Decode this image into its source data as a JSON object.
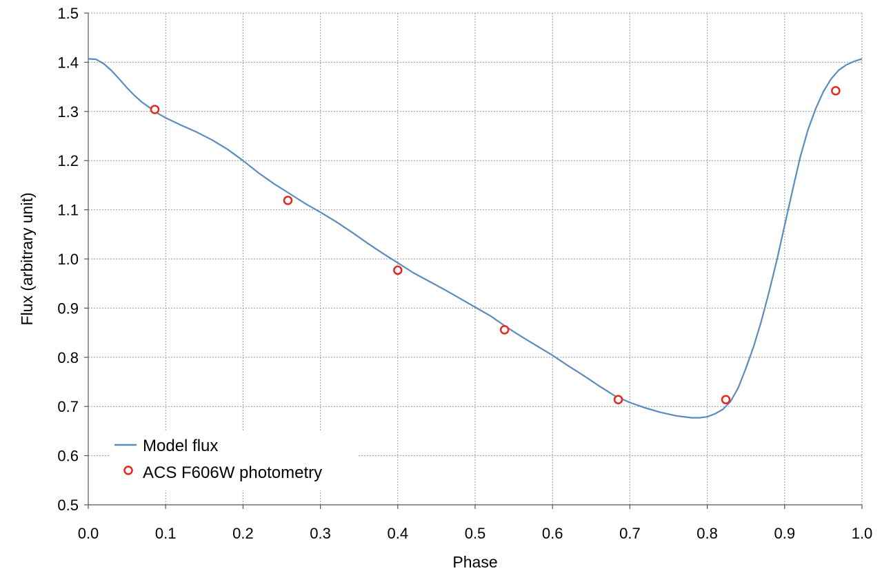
{
  "chart_data": {
    "type": "line",
    "title": "",
    "xlabel": "Phase",
    "ylabel": "Flux (arbitrary unit)",
    "xlim": [
      0.0,
      1.0
    ],
    "ylim": [
      0.5,
      1.5
    ],
    "x_ticks": [
      "0.0",
      "0.1",
      "0.2",
      "0.3",
      "0.4",
      "0.5",
      "0.6",
      "0.7",
      "0.8",
      "0.9",
      "1.0"
    ],
    "y_ticks": [
      "0.5",
      "0.6",
      "0.7",
      "0.8",
      "0.9",
      "1.0",
      "1.1",
      "1.2",
      "1.3",
      "1.4",
      "1.5"
    ],
    "grid": true,
    "legend_position": "bottom-left",
    "series": [
      {
        "name": "Model flux",
        "kind": "line",
        "color": "#5b8bbd",
        "points": [
          [
            0.0,
            1.407
          ],
          [
            0.01,
            1.406
          ],
          [
            0.02,
            1.397
          ],
          [
            0.03,
            1.383
          ],
          [
            0.04,
            1.366
          ],
          [
            0.05,
            1.348
          ],
          [
            0.06,
            1.332
          ],
          [
            0.07,
            1.318
          ],
          [
            0.08,
            1.307
          ],
          [
            0.09,
            1.296
          ],
          [
            0.1,
            1.287
          ],
          [
            0.12,
            1.272
          ],
          [
            0.14,
            1.258
          ],
          [
            0.16,
            1.242
          ],
          [
            0.18,
            1.223
          ],
          [
            0.2,
            1.2
          ],
          [
            0.22,
            1.175
          ],
          [
            0.24,
            1.153
          ],
          [
            0.26,
            1.133
          ],
          [
            0.28,
            1.113
          ],
          [
            0.3,
            1.095
          ],
          [
            0.32,
            1.076
          ],
          [
            0.34,
            1.055
          ],
          [
            0.36,
            1.033
          ],
          [
            0.38,
            1.012
          ],
          [
            0.4,
            0.992
          ],
          [
            0.42,
            0.972
          ],
          [
            0.44,
            0.955
          ],
          [
            0.46,
            0.938
          ],
          [
            0.48,
            0.92
          ],
          [
            0.5,
            0.902
          ],
          [
            0.52,
            0.884
          ],
          [
            0.54,
            0.862
          ],
          [
            0.56,
            0.842
          ],
          [
            0.58,
            0.823
          ],
          [
            0.6,
            0.804
          ],
          [
            0.62,
            0.783
          ],
          [
            0.64,
            0.763
          ],
          [
            0.66,
            0.742
          ],
          [
            0.68,
            0.722
          ],
          [
            0.7,
            0.708
          ],
          [
            0.72,
            0.697
          ],
          [
            0.74,
            0.688
          ],
          [
            0.76,
            0.681
          ],
          [
            0.78,
            0.677
          ],
          [
            0.79,
            0.677
          ],
          [
            0.8,
            0.679
          ],
          [
            0.81,
            0.685
          ],
          [
            0.82,
            0.694
          ],
          [
            0.83,
            0.71
          ],
          [
            0.84,
            0.738
          ],
          [
            0.85,
            0.778
          ],
          [
            0.86,
            0.822
          ],
          [
            0.87,
            0.874
          ],
          [
            0.88,
            0.934
          ],
          [
            0.89,
            0.998
          ],
          [
            0.9,
            1.068
          ],
          [
            0.91,
            1.138
          ],
          [
            0.92,
            1.206
          ],
          [
            0.93,
            1.262
          ],
          [
            0.94,
            1.305
          ],
          [
            0.95,
            1.34
          ],
          [
            0.96,
            1.366
          ],
          [
            0.97,
            1.384
          ],
          [
            0.98,
            1.395
          ],
          [
            0.99,
            1.402
          ],
          [
            1.0,
            1.407
          ]
        ]
      },
      {
        "name": "ACS F606W photometry",
        "kind": "scatter",
        "color": "#e8261f",
        "points": [
          [
            0.086,
            1.304
          ],
          [
            0.258,
            1.119
          ],
          [
            0.4,
            0.977
          ],
          [
            0.538,
            0.856
          ],
          [
            0.685,
            0.714
          ],
          [
            0.824,
            0.714
          ],
          [
            0.966,
            1.342
          ]
        ]
      }
    ]
  }
}
